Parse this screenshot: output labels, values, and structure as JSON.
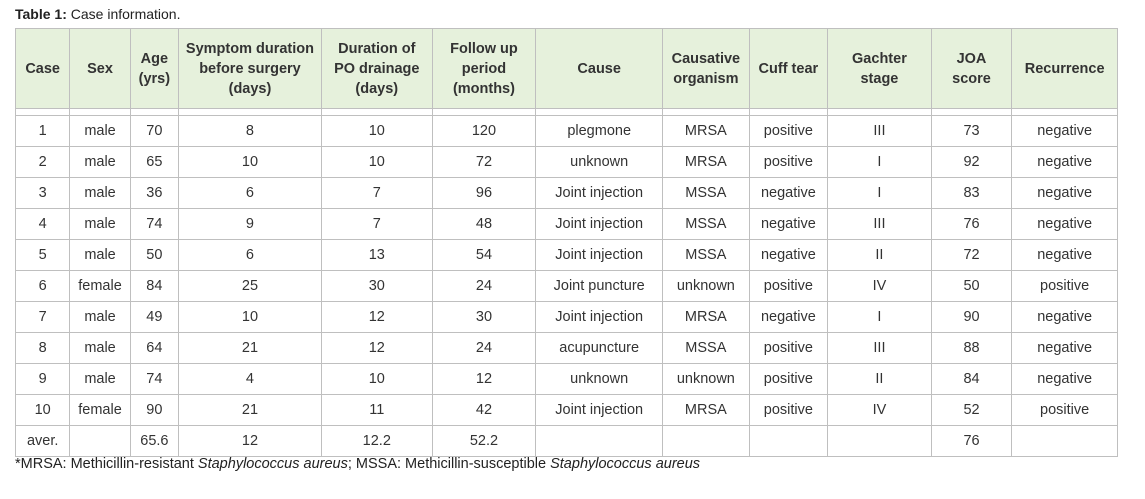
{
  "caption": {
    "label": "Table 1:",
    "text": " Case information."
  },
  "headers": [
    [
      "Case"
    ],
    [
      "Sex"
    ],
    [
      "Age",
      "(yrs)"
    ],
    [
      "Symptom duration",
      "before surgery",
      "(days)"
    ],
    [
      "Duration of",
      "PO drainage",
      "(days)"
    ],
    [
      "Follow up",
      "period",
      "(months)"
    ],
    [
      "Cause"
    ],
    [
      "Causative",
      "organism"
    ],
    [
      "Cuff tear"
    ],
    [
      "Gachter",
      "stage"
    ],
    [
      "JOA",
      "score"
    ],
    [
      "Recurrence"
    ]
  ],
  "rows": [
    [
      "1",
      "male",
      "70",
      "8",
      "10",
      "120",
      "plegmone",
      "MRSA",
      "positive",
      "III",
      "73",
      "negative"
    ],
    [
      "2",
      "male",
      "65",
      "10",
      "10",
      "72",
      "unknown",
      "MRSA",
      "positive",
      "I",
      "92",
      "negative"
    ],
    [
      "3",
      "male",
      "36",
      "6",
      "7",
      "96",
      "Joint injection",
      "MSSA",
      "negative",
      "I",
      "83",
      "negative"
    ],
    [
      "4",
      "male",
      "74",
      "9",
      "7",
      "48",
      "Joint injection",
      "MSSA",
      "negative",
      "III",
      "76",
      "negative"
    ],
    [
      "5",
      "male",
      "50",
      "6",
      "13",
      "54",
      "Joint injection",
      "MSSA",
      "negative",
      "II",
      "72",
      "negative"
    ],
    [
      "6",
      "female",
      "84",
      "25",
      "30",
      "24",
      "Joint puncture",
      "unknown",
      "positive",
      "IV",
      "50",
      "positive"
    ],
    [
      "7",
      "male",
      "49",
      "10",
      "12",
      "30",
      "Joint injection",
      "MRSA",
      "negative",
      "I",
      "90",
      "negative"
    ],
    [
      "8",
      "male",
      "64",
      "21",
      "12",
      "24",
      "acupuncture",
      "MSSA",
      "positive",
      "III",
      "88",
      "negative"
    ],
    [
      "9",
      "male",
      "74",
      "4",
      "10",
      "12",
      "unknown",
      "unknown",
      "positive",
      "II",
      "84",
      "negative"
    ],
    [
      "10",
      "female",
      "90",
      "21",
      "11",
      "42",
      "Joint injection",
      "MRSA",
      "positive",
      "IV",
      "52",
      "positive"
    ],
    [
      "aver.",
      "",
      "65.6",
      "12",
      "12.2",
      "52.2",
      "",
      "",
      "",
      "",
      "76",
      ""
    ]
  ],
  "footnote": {
    "part1": "*MRSA: Methicillin-resistant ",
    "part2": "Staphylococcus aureus",
    "part3": "; MSSA: Methicillin-susceptible ",
    "part4": "Staphylococcus aureus"
  }
}
